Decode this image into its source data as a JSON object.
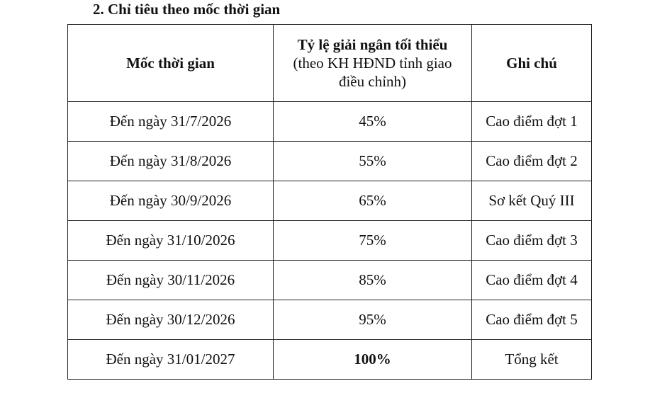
{
  "heading": "2. Chỉ tiêu theo mốc thời gian",
  "table": {
    "header": {
      "col1": "Mốc thời gian",
      "col2_title": "Tỷ lệ giải ngân tối thiểu",
      "col2_note": "(theo KH HĐND tỉnh giao điều chỉnh)",
      "col3": "Ghi chú"
    },
    "rows": [
      [
        "Đến ngày 31/7/2026",
        "45%",
        "Cao điểm đợt 1"
      ],
      [
        "Đến ngày 31/8/2026",
        "55%",
        "Cao điểm đợt 2"
      ],
      [
        "Đến ngày 30/9/2026",
        "65%",
        "Sơ kết Quý III"
      ],
      [
        "Đến ngày 31/10/2026",
        "75%",
        "Cao điểm đợt 3"
      ],
      [
        "Đến ngày 30/11/2026",
        "85%",
        "Cao điểm đợt 4"
      ],
      [
        "Đến ngày 30/12/2026",
        "95%",
        "Cao điểm đợt 5"
      ],
      [
        "Đến ngày 31/01/2027",
        "100%",
        "Tổng kết"
      ]
    ]
  }
}
